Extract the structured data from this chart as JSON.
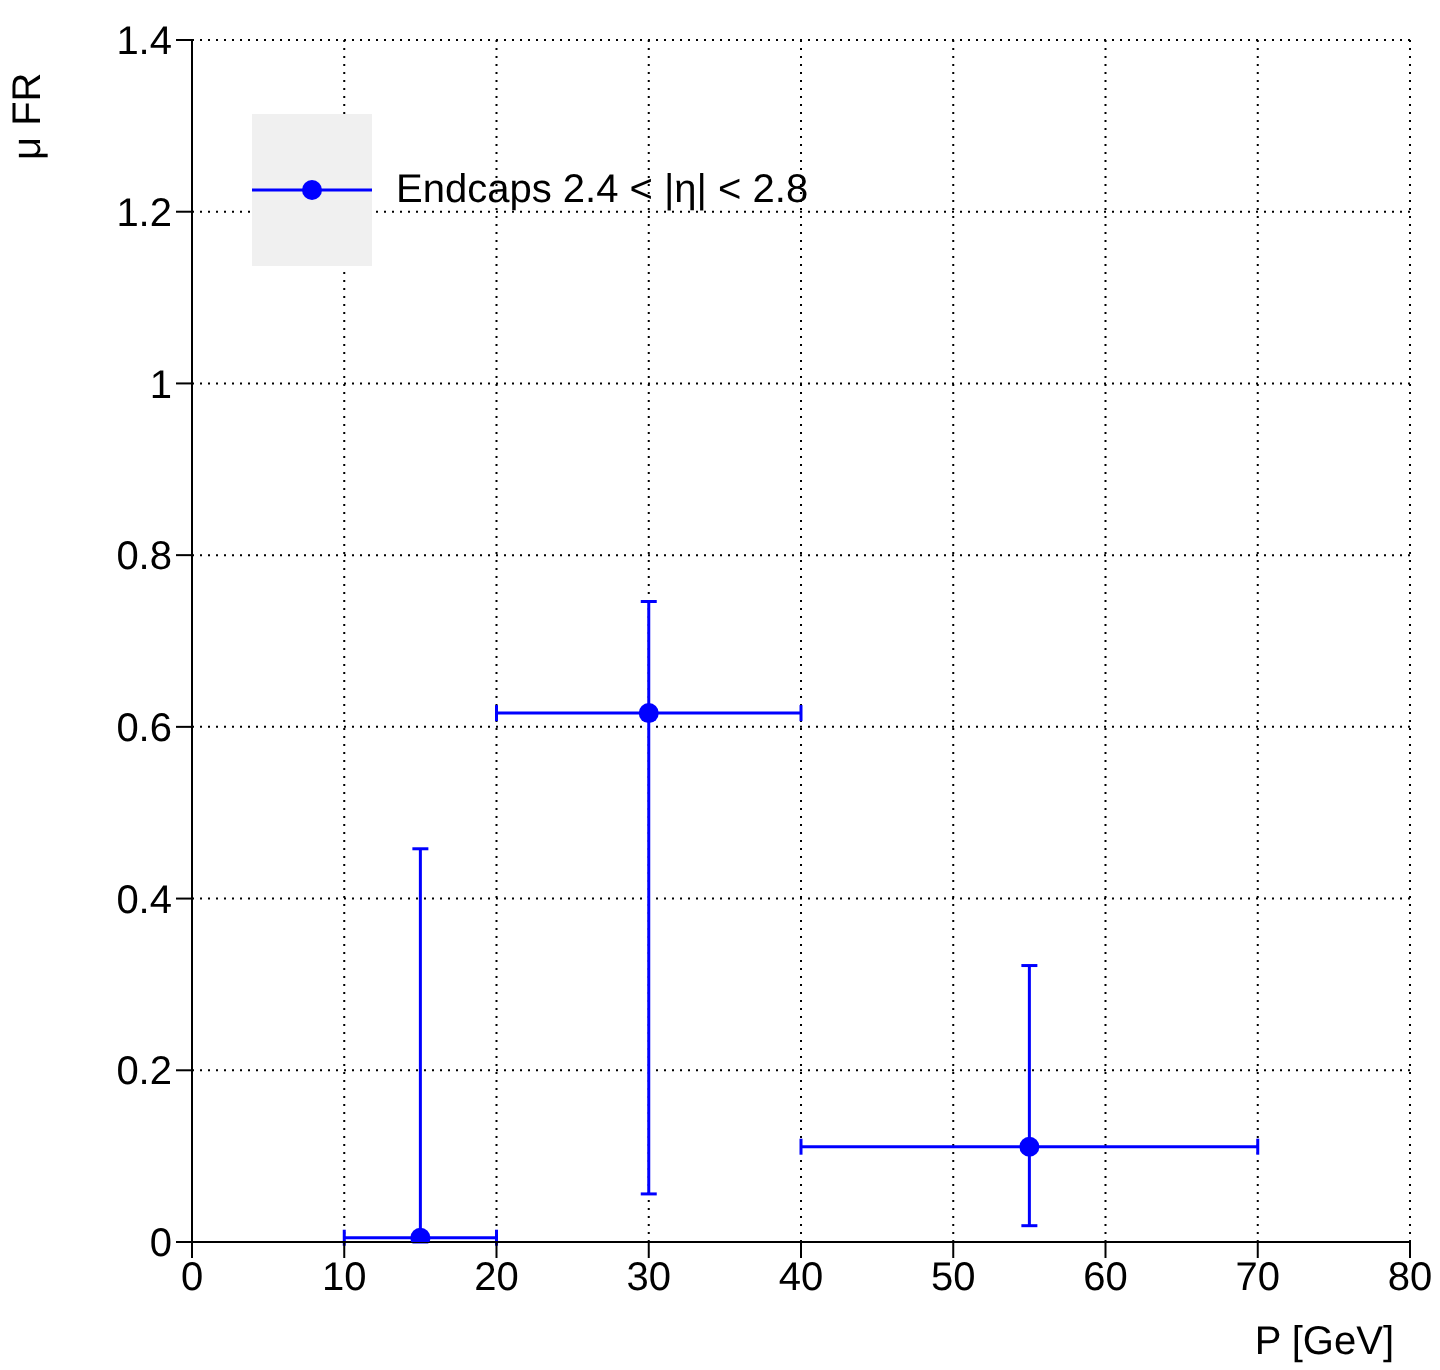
{
  "chart_data": {
    "type": "scatter",
    "xlabel": "P [GeV]",
    "ylabel": "μ FR",
    "x": [
      15,
      30,
      55
    ],
    "series": [
      {
        "name": "Endcaps 2.4 < |η| < 2.8",
        "color": "#0000ff",
        "values": [
          0.005,
          0.616,
          0.111
        ],
        "errors": [
          [
            0,
            0.458
          ],
          [
            0.056,
            0.746
          ],
          [
            0.019,
            0.322
          ]
        ],
        "xerrors": [
          5,
          10,
          15
        ]
      }
    ],
    "xlim": [
      0,
      80
    ],
    "xticks": [
      0,
      10,
      20,
      30,
      40,
      50,
      60,
      70,
      80
    ],
    "ylim": [
      0,
      1.4
    ],
    "yticks": [
      0,
      0.2,
      0.4,
      0.6,
      0.8,
      1,
      1.2,
      1.4
    ],
    "grid": true,
    "legend": "top left",
    "marker": "circle"
  }
}
